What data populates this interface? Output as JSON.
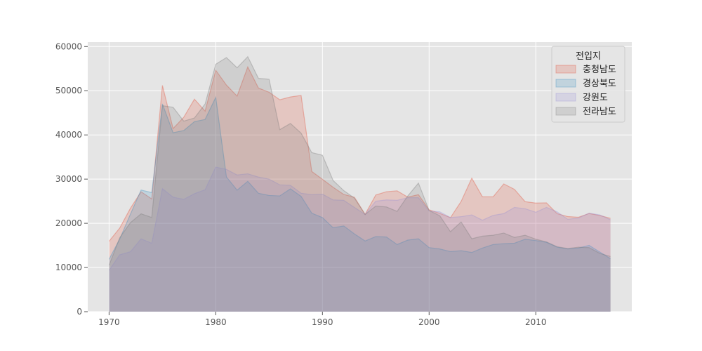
{
  "chart_data": {
    "type": "area",
    "stacked": false,
    "x": [
      1970,
      1971,
      1972,
      1973,
      1974,
      1975,
      1976,
      1977,
      1978,
      1979,
      1980,
      1981,
      1982,
      1983,
      1984,
      1985,
      1986,
      1987,
      1988,
      1989,
      1990,
      1991,
      1992,
      1993,
      1994,
      1995,
      1996,
      1997,
      1998,
      1999,
      2000,
      2001,
      2002,
      2003,
      2004,
      2005,
      2006,
      2007,
      2008,
      2009,
      2010,
      2011,
      2012,
      2013,
      2014,
      2015,
      2016,
      2017
    ],
    "xlim": [
      1968,
      2019
    ],
    "ylim": [
      0,
      61000
    ],
    "xticks": [
      "1970",
      "1980",
      "1990",
      "2000",
      "2010"
    ],
    "yticks": [
      "0",
      "10000",
      "20000",
      "30000",
      "40000",
      "50000",
      "60000"
    ],
    "grid": true,
    "legend": {
      "title": "전입지",
      "position": "top-right"
    },
    "series": [
      {
        "name": "충청남도",
        "color": "#E24A33",
        "values": [
          15954,
          18943,
          23406,
          27139,
          25509,
          51205,
          41447,
          43993,
          48091,
          45388,
          54633,
          51278,
          48790,
          55390,
          50608,
          49662,
          47954,
          48588,
          48933,
          31726,
          29959,
          28150,
          26538,
          25896,
          22040,
          26405,
          27152,
          27352,
          25931,
          26490,
          23056,
          22245,
          21283,
          24944,
          30217,
          25998,
          25990,
          28911,
          27687,
          24897,
          24581,
          24630,
          22186,
          21521,
          21379,
          22222,
          21762,
          21134
        ]
      },
      {
        "name": "경상북도",
        "color": "#348ABD",
        "values": [
          11868,
          16459,
          22073,
          27531,
          26944,
          47025,
          40500,
          41000,
          43000,
          43500,
          48500,
          30500,
          27500,
          29500,
          26800,
          26300,
          26200,
          27800,
          26100,
          22300,
          21300,
          19000,
          19400,
          17600,
          16000,
          17000,
          16900,
          15200,
          16200,
          16500,
          14500,
          14200,
          13600,
          13800,
          13400,
          14400,
          15200,
          15400,
          15500,
          16400,
          16100,
          15700,
          14600,
          14200,
          14400,
          15000,
          13500,
          12000
        ]
      },
      {
        "name": "강원도",
        "color": "#988ED5",
        "values": [
          9352,
          12885,
          13561,
          16481,
          15479,
          27837,
          25927,
          25415,
          26700,
          27599,
          32717,
          32200,
          30933,
          31200,
          30459,
          30000,
          28700,
          28600,
          26800,
          26500,
          26600,
          25300,
          25200,
          23600,
          22000,
          25000,
          25300,
          25200,
          25800,
          25800,
          22800,
          22600,
          21300,
          21500,
          21900,
          20700,
          21800,
          22200,
          23600,
          23300,
          22500,
          23600,
          22600,
          20900,
          21200,
          22300,
          21900,
          20800
        ]
      },
      {
        "name": "전라남도",
        "color": "#777777",
        "values": [
          10513,
          16755,
          20157,
          22160,
          21314,
          46610,
          46251,
          43121,
          43832,
          47000,
          56000,
          57500,
          55200,
          57700,
          52800,
          52600,
          41200,
          42600,
          40400,
          36000,
          35400,
          29700,
          27400,
          25700,
          22000,
          23900,
          23700,
          22700,
          26200,
          29100,
          22900,
          21700,
          18100,
          20300,
          16500,
          17100,
          17300,
          17800,
          16800,
          17300,
          16400,
          15800,
          14700,
          14300,
          14600,
          14500,
          13200,
          12500
        ]
      }
    ]
  }
}
